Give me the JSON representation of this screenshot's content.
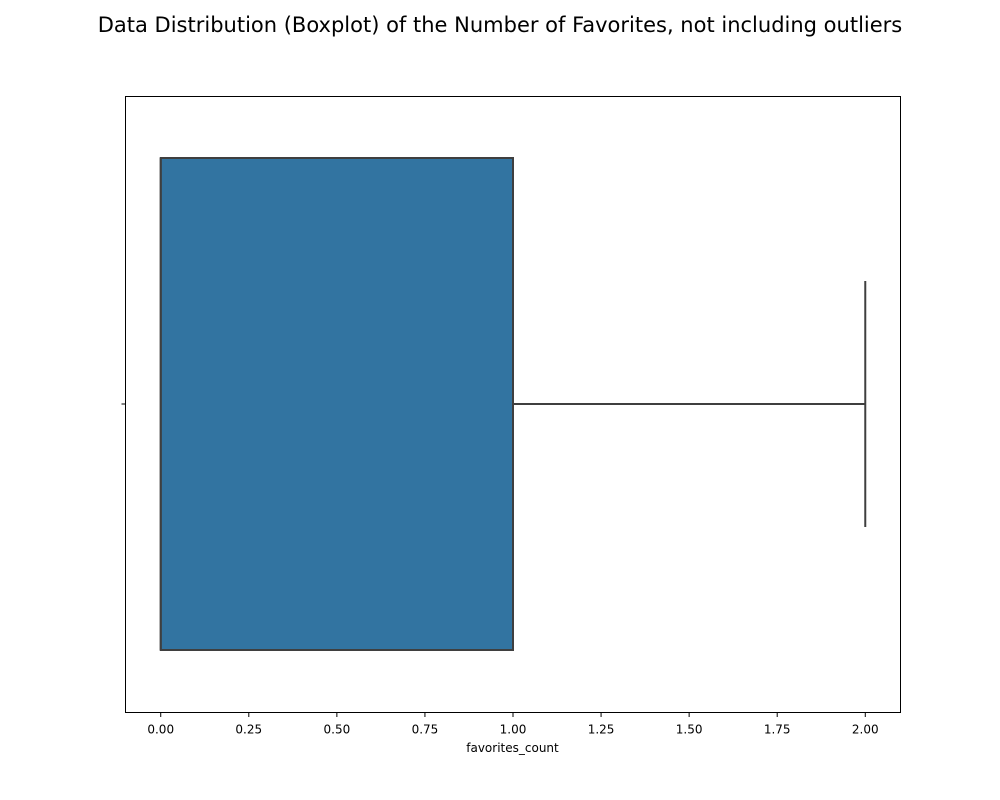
{
  "chart_data": {
    "type": "box",
    "title": "Data Distribution (Boxplot) of the  Number of Favorites, not including outliers",
    "xlabel": "favorites_count",
    "ylabel": "",
    "xlim": [
      -0.1,
      2.1
    ],
    "x_ticks": [
      0.0,
      0.25,
      0.5,
      0.75,
      1.0,
      1.25,
      1.5,
      1.75,
      2.0
    ],
    "x_tick_labels": [
      "0.00",
      "0.25",
      "0.50",
      "0.75",
      "1.00",
      "1.25",
      "1.50",
      "1.75",
      "2.00"
    ],
    "orientation": "horizontal",
    "grid": false,
    "legend": "none",
    "box": {
      "whisker_low": 0,
      "q1": 0,
      "median": 0,
      "q3": 1,
      "whisker_high": 2
    },
    "box_color": "#3274a1",
    "line_color": "#3f3f3f"
  }
}
